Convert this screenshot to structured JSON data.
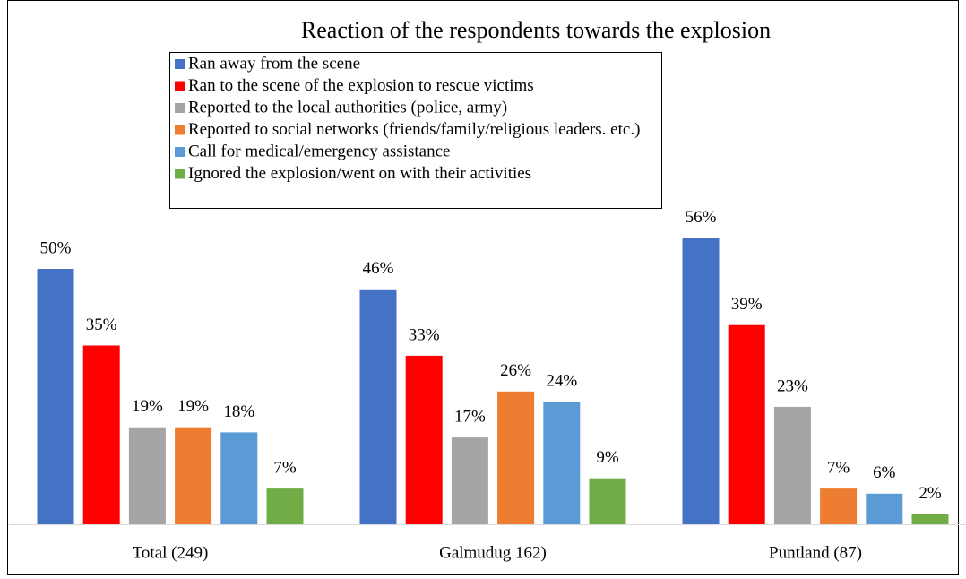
{
  "chart_data": {
    "type": "bar",
    "title": "Reaction of the respondents towards the explosion",
    "categories": [
      "Total (249)",
      "Galmudug 162)",
      "Puntland (87)"
    ],
    "series": [
      {
        "name": "Ran away from the scene",
        "color": "#4472c4",
        "values": [
          50,
          46,
          56
        ],
        "value_labels": [
          "50%",
          "46%",
          "56%"
        ]
      },
      {
        "name": "Ran to the scene of the explosion to rescue victims",
        "color": "#ff0000",
        "values": [
          35,
          33,
          39
        ],
        "value_labels": [
          "35%",
          "33%",
          "39%"
        ]
      },
      {
        "name": "Reported to the local authorities (police, army)",
        "color": "#a5a5a5",
        "values": [
          19,
          17,
          23
        ],
        "value_labels": [
          "19%",
          "17%",
          "23%"
        ]
      },
      {
        "name": "Reported to social networks (friends/family/religious leaders. etc.)",
        "color": "#ed7d31",
        "values": [
          19,
          26,
          7
        ],
        "value_labels": [
          "19%",
          "26%",
          "7%"
        ]
      },
      {
        "name": "Call for medical/emergency assistance",
        "color": "#5b9bd5",
        "values": [
          18,
          24,
          6
        ],
        "value_labels": [
          "18%",
          "24%",
          "6%"
        ]
      },
      {
        "name": "Ignored the explosion/went on with their activities",
        "color": "#70ad47",
        "values": [
          7,
          9,
          2
        ],
        "value_labels": [
          "7%",
          "9%",
          "2%"
        ]
      }
    ]
  }
}
